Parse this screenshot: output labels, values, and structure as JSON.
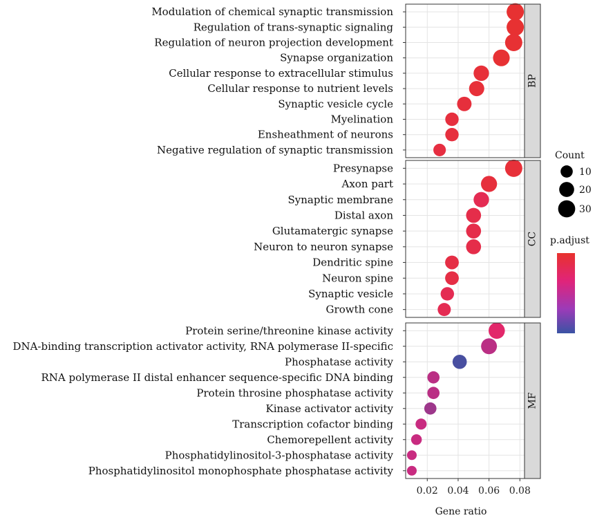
{
  "chart_data": {
    "type": "scatter",
    "xlabel": "Gene ratio",
    "xlim": [
      0.006,
      0.083
    ],
    "x_ticks": [
      "0.02",
      "0.04",
      "0.06",
      "0.08"
    ],
    "x_tick_values": [
      0.02,
      0.04,
      0.06,
      0.08
    ],
    "grid": true,
    "size_legend": {
      "title": "Count",
      "values": [
        10,
        20,
        30
      ],
      "labels": [
        "10",
        "20",
        "30"
      ]
    },
    "color_legend": {
      "title": "p.adjust",
      "low_color": "#e8322d",
      "mid_color": "#e0247a",
      "high_color": "#3a53a4"
    },
    "panels": [
      {
        "name": "BP",
        "terms": [
          {
            "label": "Modulation of chemical synaptic transmission",
            "x": 0.077,
            "count": 31,
            "p": 0.02
          },
          {
            "label": "Regulation of trans-synaptic signaling",
            "x": 0.077,
            "count": 31,
            "p": 0.02
          },
          {
            "label": "Regulation of neuron projection development",
            "x": 0.076,
            "count": 31,
            "p": 0.03
          },
          {
            "label": "Synapse organization",
            "x": 0.068,
            "count": 28,
            "p": 0.03
          },
          {
            "label": "Cellular response to extracellular stimulus",
            "x": 0.055,
            "count": 22,
            "p": 0.05
          },
          {
            "label": "Cellular response to nutrient levels",
            "x": 0.052,
            "count": 21,
            "p": 0.05
          },
          {
            "label": "Synaptic vesicle cycle",
            "x": 0.044,
            "count": 18,
            "p": 0.06
          },
          {
            "label": "Myelination",
            "x": 0.036,
            "count": 14,
            "p": 0.07
          },
          {
            "label": "Ensheathment of neurons",
            "x": 0.036,
            "count": 14,
            "p": 0.07
          },
          {
            "label": "Negative regulation of synaptic transmission",
            "x": 0.028,
            "count": 11,
            "p": 0.08
          }
        ]
      },
      {
        "name": "CC",
        "terms": [
          {
            "label": "Presynapse",
            "x": 0.076,
            "count": 31,
            "p": 0.05
          },
          {
            "label": "Axon part",
            "x": 0.06,
            "count": 25,
            "p": 0.06
          },
          {
            "label": "Synaptic membrane",
            "x": 0.055,
            "count": 22,
            "p": 0.15
          },
          {
            "label": "Distal axon",
            "x": 0.05,
            "count": 20,
            "p": 0.12
          },
          {
            "label": "Glutamatergic synapse",
            "x": 0.05,
            "count": 20,
            "p": 0.12
          },
          {
            "label": "Neuron to neuron synapse",
            "x": 0.05,
            "count": 20,
            "p": 0.12
          },
          {
            "label": "Dendritic spine",
            "x": 0.036,
            "count": 15,
            "p": 0.1
          },
          {
            "label": "Neuron spine",
            "x": 0.036,
            "count": 15,
            "p": 0.1
          },
          {
            "label": "Synaptic vesicle",
            "x": 0.033,
            "count": 14,
            "p": 0.15
          },
          {
            "label": "Growth cone",
            "x": 0.031,
            "count": 13,
            "p": 0.15
          }
        ]
      },
      {
        "name": "MF",
        "terms": [
          {
            "label": "Protein serine/threonine kinase activity",
            "x": 0.065,
            "count": 26,
            "p": 0.25
          },
          {
            "label": "DNA-binding transcription activator activity, RNA polymerase II-specific",
            "x": 0.06,
            "count": 24,
            "p": 0.45
          },
          {
            "label": "Phosphatase activity",
            "x": 0.041,
            "count": 17,
            "p": 0.85
          },
          {
            "label": "RNA polymerase II distal enhancer sequence-specific DNA binding",
            "x": 0.024,
            "count": 10,
            "p": 0.45
          },
          {
            "label": "Protein throsine phosphatase activity",
            "x": 0.024,
            "count": 10,
            "p": 0.45
          },
          {
            "label": "Kinase activator activity",
            "x": 0.022,
            "count": 10,
            "p": 0.55
          },
          {
            "label": "Transcription cofactor binding",
            "x": 0.016,
            "count": 7,
            "p": 0.4
          },
          {
            "label": "Chemorepellent activity",
            "x": 0.013,
            "count": 6,
            "p": 0.4
          },
          {
            "label": "Phosphatidylinositol-3-phosphatase activity",
            "x": 0.01,
            "count": 4,
            "p": 0.4
          },
          {
            "label": "Phosphatidylinositol monophosphate phosphatase activity",
            "x": 0.01,
            "count": 4,
            "p": 0.4
          }
        ]
      }
    ]
  }
}
